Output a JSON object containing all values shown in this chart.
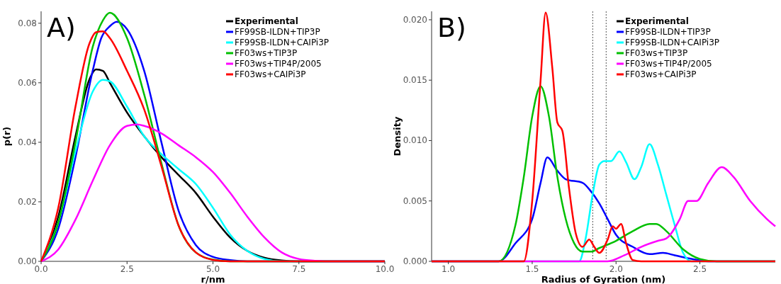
{
  "chart_data": [
    {
      "type": "line",
      "xlabel": "r/nm",
      "ylabel": "p(r)",
      "annotations": [
        "A)"
      ],
      "xlim": [
        0,
        10
      ],
      "ylim": [
        0,
        0.084
      ],
      "xticks": [
        {
          "value": 0,
          "label": "0.0"
        },
        2.5,
        {
          "value": 5,
          "label": "5.0"
        },
        7.5,
        {
          "value": 10,
          "label": "10.0"
        }
      ],
      "yticks": [
        {
          "value": 0,
          "label": "0.00"
        },
        0.02,
        0.04,
        0.06,
        0.08
      ],
      "legend": "top right",
      "grid": false,
      "marker": "none",
      "line_style": "solid",
      "series": [
        {
          "name": "Experimental",
          "color": "#000000",
          "x": [
            0,
            0.5,
            1,
            1.4,
            1.6,
            1.8,
            2,
            2.5,
            3,
            3.5,
            4,
            4.5,
            5,
            5.5,
            6,
            6.5,
            7,
            7.5,
            10
          ],
          "values": [
            0,
            0.015,
            0.042,
            0.061,
            0.0645,
            0.064,
            0.06,
            0.05,
            0.042,
            0.035,
            0.029,
            0.023,
            0.015,
            0.008,
            0.0035,
            0.0012,
            0.0003,
            0,
            0
          ]
        },
        {
          "name": "FF99SB-ILDN+TIP3P",
          "color": "#0000ff",
          "x": [
            0,
            0.5,
            1,
            1.5,
            1.75,
            2,
            2.2,
            2.5,
            3,
            3.5,
            4,
            4.5,
            5,
            5.5,
            6,
            10
          ],
          "values": [
            0,
            0.011,
            0.035,
            0.064,
            0.075,
            0.079,
            0.0805,
            0.078,
            0.064,
            0.04,
            0.017,
            0.0055,
            0.0015,
            0.0004,
            0,
            0
          ]
        },
        {
          "name": "FF99SB-ILDN+CAIPi3P",
          "color": "#00ffff",
          "x": [
            0,
            0.5,
            1,
            1.5,
            1.8,
            2,
            2.5,
            3,
            3.5,
            4,
            4.5,
            5,
            5.5,
            6,
            6.5,
            7,
            10
          ],
          "values": [
            0,
            0.013,
            0.037,
            0.057,
            0.061,
            0.0605,
            0.052,
            0.042,
            0.036,
            0.031,
            0.026,
            0.018,
            0.009,
            0.0035,
            0.0008,
            0,
            0
          ]
        },
        {
          "name": "FF03ws+TIP3P",
          "color": "#00c000",
          "x": [
            0,
            0.5,
            1,
            1.5,
            1.8,
            2,
            2.5,
            3,
            3.5,
            4,
            4.5,
            5,
            5.5,
            10
          ],
          "values": [
            0,
            0.013,
            0.04,
            0.072,
            0.081,
            0.0835,
            0.075,
            0.056,
            0.033,
            0.012,
            0.003,
            0.0006,
            0,
            0
          ]
        },
        {
          "name": "FF03ws+TIP4P/2005",
          "color": "#ff00ff",
          "x": [
            0,
            0.5,
            1,
            1.5,
            2,
            2.5,
            2.8,
            3,
            3.5,
            4,
            4.5,
            5,
            5.5,
            6,
            6.5,
            7,
            7.5,
            8,
            8.5,
            10
          ],
          "values": [
            0,
            0.004,
            0.014,
            0.027,
            0.039,
            0.0455,
            0.046,
            0.0455,
            0.043,
            0.039,
            0.035,
            0.03,
            0.023,
            0.015,
            0.008,
            0.003,
            0.0008,
            0.0002,
            0,
            0
          ]
        },
        {
          "name": "FF03ws+CAIPi3P",
          "color": "#ff0000",
          "x": [
            0,
            0.5,
            1,
            1.4,
            1.6,
            1.8,
            2,
            2.5,
            3,
            3.5,
            4,
            4.5,
            5,
            5.5,
            10
          ],
          "values": [
            0,
            0.018,
            0.052,
            0.073,
            0.077,
            0.0773,
            0.075,
            0.064,
            0.051,
            0.032,
            0.012,
            0.003,
            0.0005,
            0,
            0
          ]
        }
      ]
    },
    {
      "type": "line",
      "xlabel": "Radius of Gyration (nm)",
      "ylabel": "Density",
      "annotations": [
        "B)"
      ],
      "xlim": [
        0.9,
        2.95
      ],
      "ylim": [
        0,
        0.0207
      ],
      "xticks": [
        {
          "value": 1,
          "label": "1.0"
        },
        1.5,
        {
          "value": 2,
          "label": "2.0"
        },
        2.5
      ],
      "yticks": [
        {
          "value": 0,
          "label": "0.000"
        },
        0.005,
        {
          "value": 0.01,
          "label": "0.010"
        },
        0.015,
        {
          "value": 0.02,
          "label": "0.020"
        }
      ],
      "legend": "top right",
      "grid": false,
      "marker": "none",
      "line_style": "solid",
      "ref_lines": [
        {
          "axis": "x",
          "value": 1.861,
          "color": "#555555",
          "line_style": "dotted"
        },
        {
          "axis": "x",
          "value": 1.941,
          "color": "#555555",
          "line_style": "dotted"
        }
      ],
      "series": [
        {
          "name": "Experimental",
          "color": "#000000"
        },
        {
          "name": "FF99SB-ILDN+TIP3P",
          "color": "#0000ff",
          "x": [
            0.9,
            1.3,
            1.4,
            1.5,
            1.55,
            1.59,
            1.65,
            1.7,
            1.8,
            1.85,
            1.9,
            1.95,
            2.0,
            2.1,
            2.2,
            2.28,
            2.35,
            2.45,
            2.55,
            2.95
          ],
          "values": [
            0,
            0,
            0.0015,
            0.0035,
            0.0065,
            0.0086,
            0.0075,
            0.0068,
            0.0065,
            0.0058,
            0.0048,
            0.0035,
            0.0022,
            0.0012,
            0.0006,
            0.0007,
            0.0005,
            0.0002,
            0,
            0
          ]
        },
        {
          "name": "FF99SB-ILDN+CAIPi3P",
          "color": "#00ffff",
          "x": [
            0.9,
            1.78,
            1.82,
            1.86,
            1.9,
            1.93,
            1.97,
            2.02,
            2.06,
            2.11,
            2.15,
            2.2,
            2.25,
            2.3,
            2.35,
            2.4,
            2.45,
            2.95
          ],
          "values": [
            0,
            0,
            0.002,
            0.0055,
            0.008,
            0.0083,
            0.0083,
            0.0091,
            0.0082,
            0.0068,
            0.0078,
            0.0097,
            0.008,
            0.0055,
            0.003,
            0.0007,
            0,
            0
          ]
        },
        {
          "name": "FF03ws+TIP3P",
          "color": "#00c000",
          "x": [
            0.9,
            1.3,
            1.4,
            1.45,
            1.5,
            1.55,
            1.6,
            1.65,
            1.7,
            1.75,
            1.8,
            1.85,
            1.9,
            2.0,
            2.1,
            2.2,
            2.24,
            2.3,
            2.4,
            2.5,
            2.6,
            2.95
          ],
          "values": [
            0,
            0,
            0.003,
            0.007,
            0.012,
            0.0145,
            0.012,
            0.007,
            0.0035,
            0.0015,
            0.0008,
            0.0008,
            0.0011,
            0.0017,
            0.0025,
            0.0031,
            0.0031,
            0.0025,
            0.001,
            0.0002,
            0,
            0
          ]
        },
        {
          "name": "FF03ws+TIP4P/2005",
          "color": "#ff00ff",
          "x": [
            0.9,
            1.95,
            2.05,
            2.15,
            2.25,
            2.3,
            2.38,
            2.43,
            2.48,
            2.55,
            2.63,
            2.7,
            2.8,
            2.9,
            2.95
          ],
          "values": [
            0,
            0,
            0.0005,
            0.0012,
            0.0017,
            0.0019,
            0.0035,
            0.005,
            0.005,
            0.0065,
            0.0078,
            0.007,
            0.005,
            0.0035,
            0.0029
          ]
        },
        {
          "name": "FF03ws+CAIPi3P",
          "color": "#ff0000",
          "x": [
            0.9,
            1.45,
            1.5,
            1.55,
            1.58,
            1.62,
            1.65,
            1.68,
            1.72,
            1.76,
            1.8,
            1.84,
            1.87,
            1.9,
            1.95,
            1.98,
            2.0,
            2.03,
            2.06,
            2.1,
            2.15,
            2.95
          ],
          "values": [
            0,
            0,
            0.005,
            0.015,
            0.0206,
            0.016,
            0.0115,
            0.0108,
            0.006,
            0.0023,
            0.0012,
            0.0018,
            0.0012,
            0.0007,
            0.0018,
            0.0029,
            0.0027,
            0.0031,
            0.0015,
            0.0001,
            0,
            0
          ]
        }
      ]
    }
  ]
}
